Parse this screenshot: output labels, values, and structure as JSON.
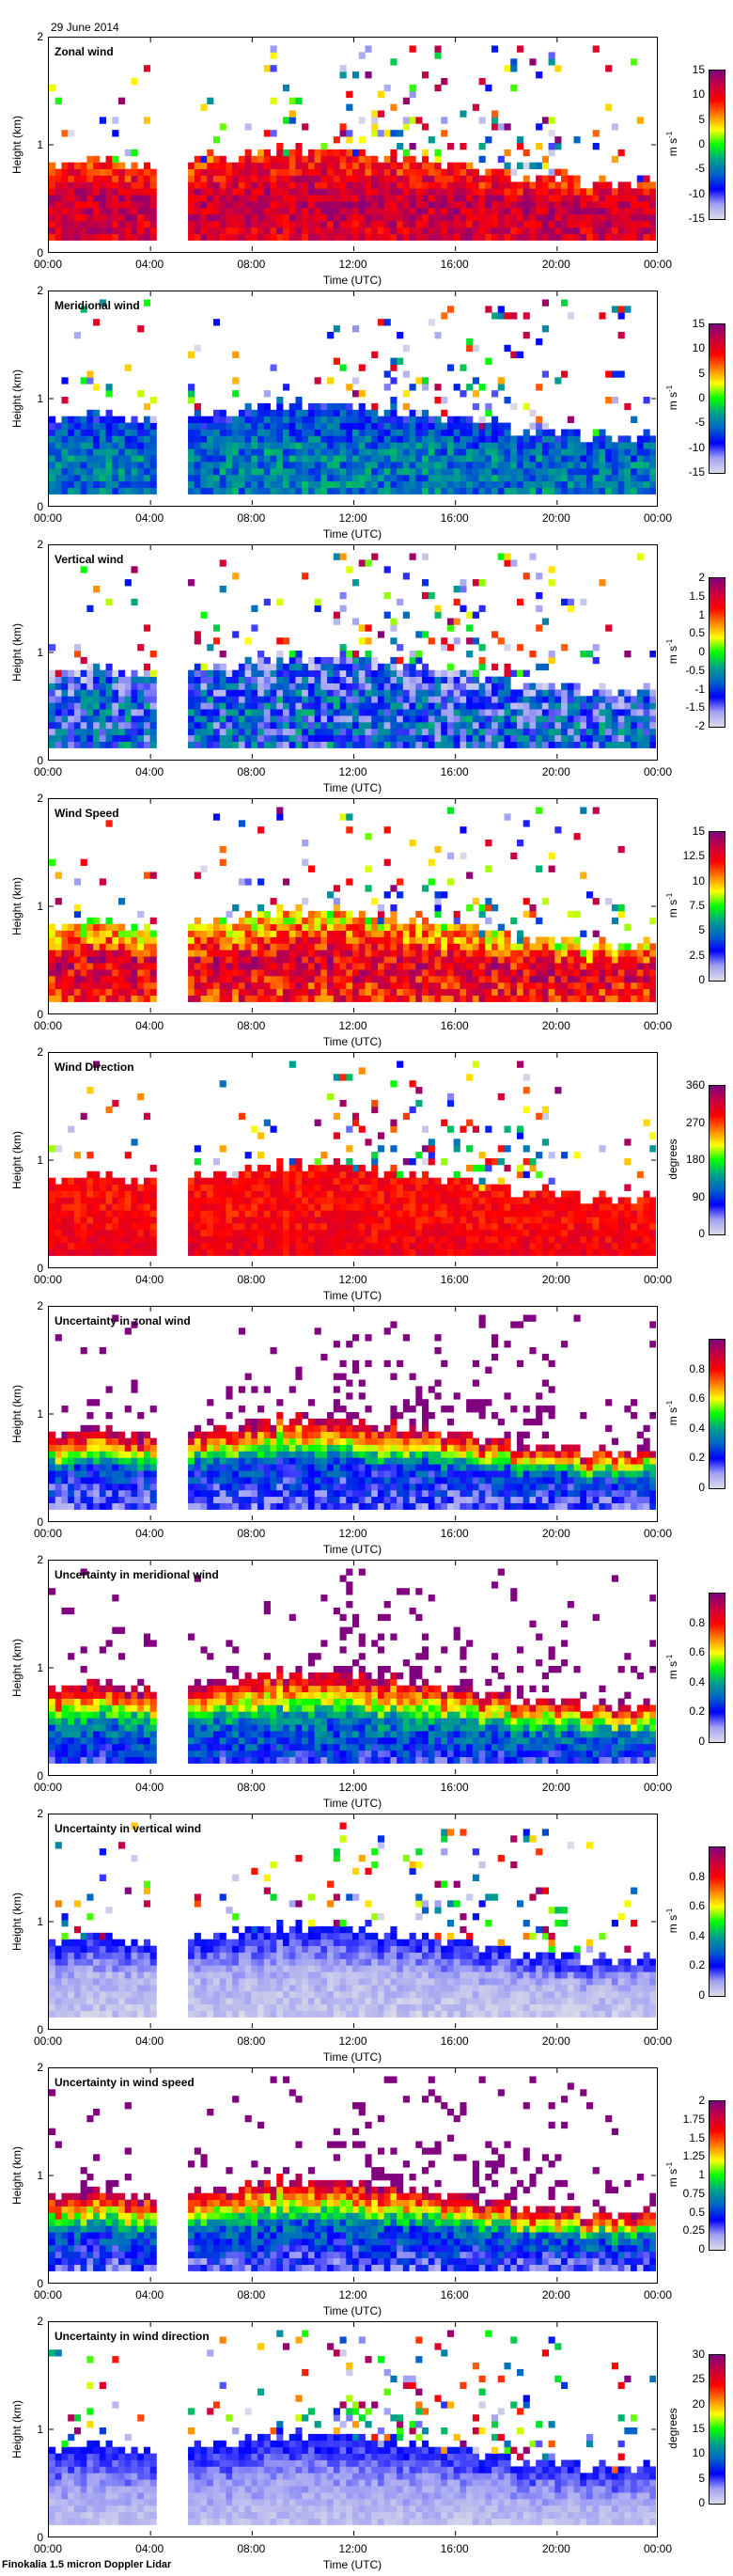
{
  "date": "29 June 2014",
  "footer": "Finokalia 1.5 micron Doppler Lidar",
  "colormap": [
    "#dcdce8",
    "#a0a0f4",
    "#0000ff",
    "#0064c8",
    "#00a08c",
    "#00ff00",
    "#ffff00",
    "#ff8000",
    "#ff0000",
    "#c80040",
    "#800080"
  ],
  "chart_data": {
    "type": "heatmap",
    "xlabel": "Time (UTC)",
    "ylabel": "Height (km)",
    "x_ticks": [
      "00:00",
      "04:00",
      "08:00",
      "12:00",
      "16:00",
      "20:00",
      "00:00"
    ],
    "y_ticks": [
      "0",
      "1",
      "2"
    ],
    "xlim_hours": [
      0,
      24
    ],
    "ylim_km": [
      0,
      2
    ],
    "time_resolution_min": 15,
    "height_resolution_km": 0.06,
    "lowest_gate_km": 0.1,
    "no_data_interval": [
      "04:15",
      "05:30"
    ],
    "layer_top_km_hourly": [
      0.75,
      0.75,
      0.78,
      0.75,
      0.75,
      0.75,
      0.8,
      0.85,
      0.9,
      0.92,
      0.92,
      0.9,
      0.9,
      0.85,
      0.85,
      0.8,
      0.75,
      0.72,
      0.7,
      0.65,
      0.62,
      0.6,
      0.6,
      0.6,
      0.6
    ],
    "panels": [
      {
        "title": "Zonal wind",
        "unit": "m s",
        "unit_sup": "-1",
        "range": [
          -15,
          15
        ],
        "ticks": [
          "-15",
          "-10",
          "-5",
          "0",
          "5",
          "10",
          "15"
        ],
        "profile": [
          11,
          12,
          8
        ],
        "spread": 3,
        "scatter": "random"
      },
      {
        "title": "Meridional wind",
        "unit": "m s",
        "unit_sup": "-1",
        "range": [
          -15,
          15
        ],
        "ticks": [
          "-15",
          "-10",
          "-5",
          "0",
          "5",
          "10",
          "15"
        ],
        "profile": [
          -5,
          -5,
          -8
        ],
        "spread": 3,
        "scatter": "random"
      },
      {
        "title": "Vertical wind",
        "unit": "m s",
        "unit_sup": "-1",
        "range": [
          -2,
          2
        ],
        "ticks": [
          "-2",
          "-1.5",
          "-1",
          "-0.5",
          "0",
          "0.5",
          "1",
          "1.5",
          "2"
        ],
        "profile": [
          -1,
          -1,
          -1.3
        ],
        "spread": 0.7,
        "scatter": "random"
      },
      {
        "title": "Wind Speed",
        "unit": "m s",
        "unit_sup": "-1",
        "range": [
          0,
          15
        ],
        "ticks": [
          "0",
          "2.5",
          "5",
          "7.5",
          "10",
          "12.5",
          "15"
        ],
        "profile": [
          12,
          13,
          9
        ],
        "spread": 2,
        "scatter": "random"
      },
      {
        "title": "Wind Direction",
        "unit": "degrees",
        "unit_sup": "",
        "range": [
          0,
          360
        ],
        "ticks": [
          "0",
          "90",
          "180",
          "270",
          "360"
        ],
        "profile": [
          300,
          290,
          290
        ],
        "spread": 20,
        "scatter": "random"
      },
      {
        "title": "Uncertainty in zonal wind",
        "unit": "m s",
        "unit_sup": "-1",
        "range": [
          0,
          1
        ],
        "ticks": [
          "0",
          "0.2",
          "0.4",
          "0.6",
          "0.8"
        ],
        "profile": [
          0.15,
          0.25,
          0.95
        ],
        "spread": 0.1,
        "scatter": "max"
      },
      {
        "title": "Uncertainty in meridional wind",
        "unit": "m s",
        "unit_sup": "-1",
        "range": [
          0,
          1
        ],
        "ticks": [
          "0",
          "0.2",
          "0.4",
          "0.6",
          "0.8"
        ],
        "profile": [
          0.2,
          0.35,
          0.95
        ],
        "spread": 0.1,
        "scatter": "max"
      },
      {
        "title": "Uncertainty in vertical wind",
        "unit": "m s",
        "unit_sup": "-1",
        "range": [
          0,
          1
        ],
        "ticks": [
          "0",
          "0.2",
          "0.4",
          "0.6",
          "0.8"
        ],
        "profile": [
          0.04,
          0.07,
          0.2
        ],
        "spread": 0.04,
        "scatter": "random"
      },
      {
        "title": "Uncertainty in wind speed",
        "unit": "m s",
        "unit_sup": "-1",
        "range": [
          0,
          2
        ],
        "ticks": [
          "0",
          "0.25",
          "0.5",
          "0.75",
          "1",
          "1.25",
          "1.5",
          "1.75",
          "2"
        ],
        "profile": [
          0.3,
          0.6,
          1.9
        ],
        "spread": 0.2,
        "scatter": "max"
      },
      {
        "title": "Uncertainty in wind direction",
        "unit": "degrees",
        "unit_sup": "",
        "range": [
          0,
          30
        ],
        "ticks": [
          "0",
          "5",
          "10",
          "15",
          "20",
          "25",
          "30"
        ],
        "profile": [
          1.5,
          3,
          6
        ],
        "spread": 1,
        "scatter": "random"
      }
    ]
  }
}
